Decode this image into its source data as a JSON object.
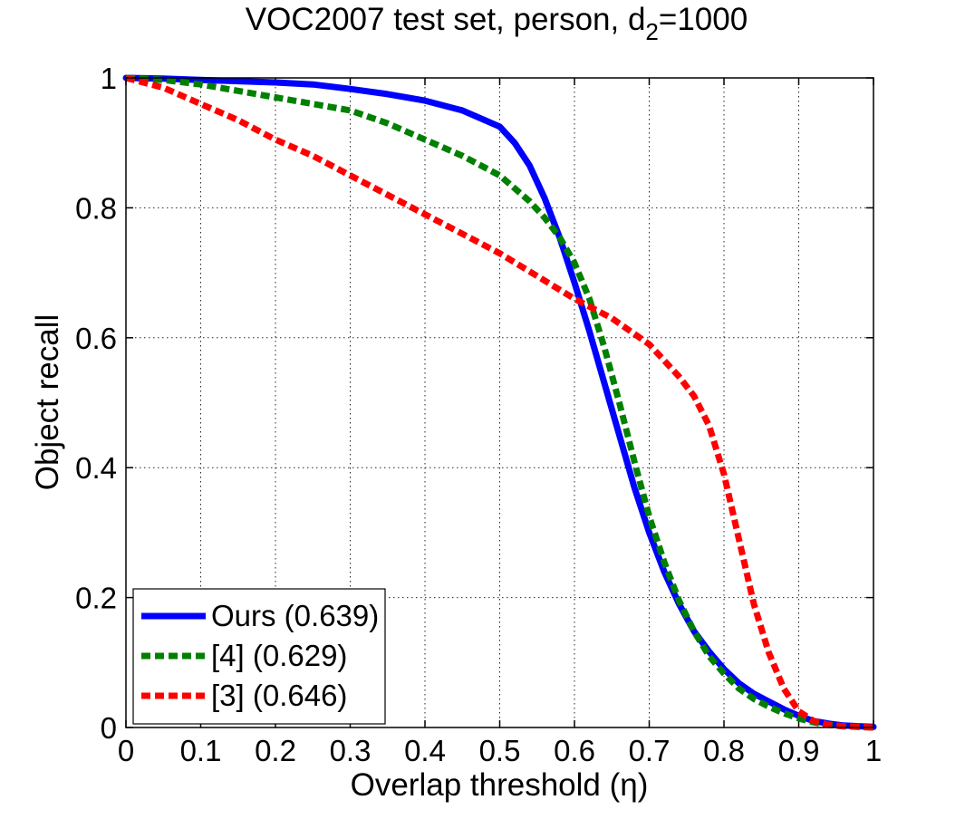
{
  "chart_data": {
    "type": "line",
    "title_main": "VOC2007 test set, person, d",
    "title_sub": "2",
    "title_tail": "=1000",
    "xlabel": "Overlap threshold (η)",
    "ylabel": "Object recall",
    "xlim": [
      0,
      1
    ],
    "ylim": [
      0,
      1
    ],
    "grid": true,
    "legend_position": "bottom-left",
    "x_ticks": [
      0,
      0.1,
      0.2,
      0.3,
      0.4,
      0.5,
      0.6,
      0.7,
      0.8,
      0.9,
      1
    ],
    "x_tick_labels": [
      "0",
      "0.1",
      "0.2",
      "0.3",
      "0.4",
      "0.5",
      "0.6",
      "0.7",
      "0.8",
      "0.9",
      "1"
    ],
    "y_ticks": [
      0,
      0.2,
      0.4,
      0.6,
      0.8,
      1
    ],
    "y_tick_labels": [
      "0",
      "0.2",
      "0.4",
      "0.6",
      "0.8",
      "1"
    ],
    "series": [
      {
        "name": "Ours (0.639)",
        "color": "#0000ff",
        "style": "solid",
        "x": [
          0,
          0.05,
          0.1,
          0.15,
          0.2,
          0.25,
          0.3,
          0.35,
          0.4,
          0.45,
          0.5,
          0.52,
          0.54,
          0.56,
          0.58,
          0.6,
          0.62,
          0.64,
          0.66,
          0.68,
          0.7,
          0.72,
          0.74,
          0.76,
          0.78,
          0.8,
          0.82,
          0.84,
          0.86,
          0.88,
          0.9,
          0.92,
          0.94,
          0.96,
          0.98,
          1.0
        ],
        "y": [
          1.0,
          0.999,
          0.997,
          0.995,
          0.993,
          0.99,
          0.983,
          0.975,
          0.965,
          0.95,
          0.925,
          0.9,
          0.865,
          0.815,
          0.755,
          0.685,
          0.61,
          0.53,
          0.45,
          0.37,
          0.3,
          0.24,
          0.19,
          0.148,
          0.117,
          0.09,
          0.068,
          0.052,
          0.04,
          0.028,
          0.018,
          0.01,
          0.006,
          0.003,
          0.002,
          0.001
        ]
      },
      {
        "name": "[4] (0.629)",
        "color": "#008000",
        "style": "dashed",
        "x": [
          0,
          0.05,
          0.1,
          0.15,
          0.2,
          0.25,
          0.3,
          0.35,
          0.4,
          0.45,
          0.5,
          0.52,
          0.54,
          0.56,
          0.58,
          0.6,
          0.62,
          0.64,
          0.66,
          0.68,
          0.7,
          0.72,
          0.74,
          0.76,
          0.78,
          0.8,
          0.82,
          0.84,
          0.86,
          0.88,
          0.9,
          0.92,
          0.94,
          0.96,
          0.98,
          1.0
        ],
        "y": [
          1.0,
          0.997,
          0.99,
          0.98,
          0.97,
          0.96,
          0.95,
          0.93,
          0.905,
          0.88,
          0.85,
          0.83,
          0.81,
          0.785,
          0.755,
          0.715,
          0.66,
          0.585,
          0.5,
          0.41,
          0.325,
          0.255,
          0.195,
          0.148,
          0.11,
          0.083,
          0.06,
          0.044,
          0.032,
          0.022,
          0.014,
          0.008,
          0.004,
          0.002,
          0.001,
          0.0
        ]
      },
      {
        "name": "[3] (0.646)",
        "color": "#ff0000",
        "style": "dashed",
        "x": [
          0,
          0.05,
          0.1,
          0.15,
          0.2,
          0.25,
          0.3,
          0.35,
          0.4,
          0.45,
          0.5,
          0.55,
          0.6,
          0.65,
          0.7,
          0.72,
          0.74,
          0.76,
          0.78,
          0.8,
          0.82,
          0.84,
          0.86,
          0.88,
          0.9,
          0.92,
          0.94,
          0.96,
          0.98,
          1.0
        ],
        "y": [
          1.0,
          0.985,
          0.96,
          0.935,
          0.905,
          0.88,
          0.85,
          0.82,
          0.79,
          0.76,
          0.73,
          0.695,
          0.66,
          0.63,
          0.59,
          0.565,
          0.54,
          0.51,
          0.465,
          0.39,
          0.29,
          0.19,
          0.115,
          0.06,
          0.025,
          0.01,
          0.004,
          0.002,
          0.001,
          0.0
        ]
      }
    ]
  }
}
